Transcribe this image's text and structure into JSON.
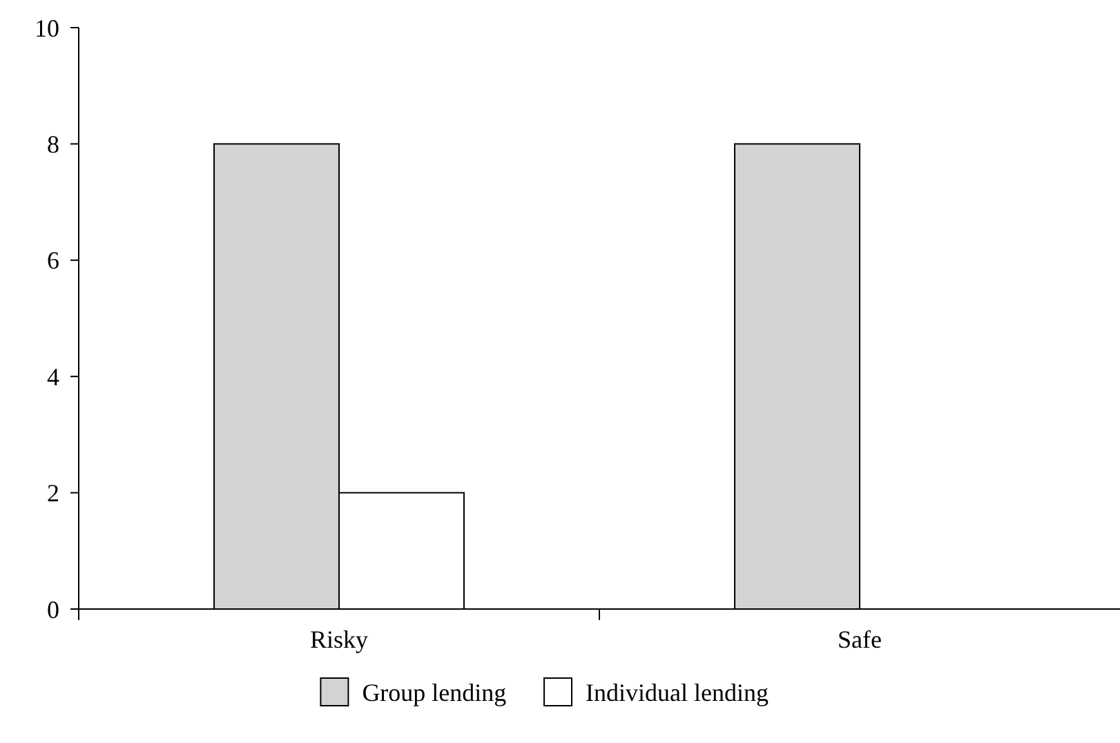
{
  "chart_data": {
    "type": "bar",
    "categories": [
      "Risky",
      "Safe"
    ],
    "series": [
      {
        "name": "Group lending",
        "color": "#d3d3d3",
        "values": [
          8,
          8
        ]
      },
      {
        "name": "Individual lending",
        "color": "#ffffff",
        "values": [
          2,
          0
        ]
      }
    ],
    "ylim": [
      0,
      10
    ],
    "yticks": [
      0,
      2,
      4,
      6,
      8,
      10
    ],
    "grid": false,
    "legend": "bottom"
  }
}
